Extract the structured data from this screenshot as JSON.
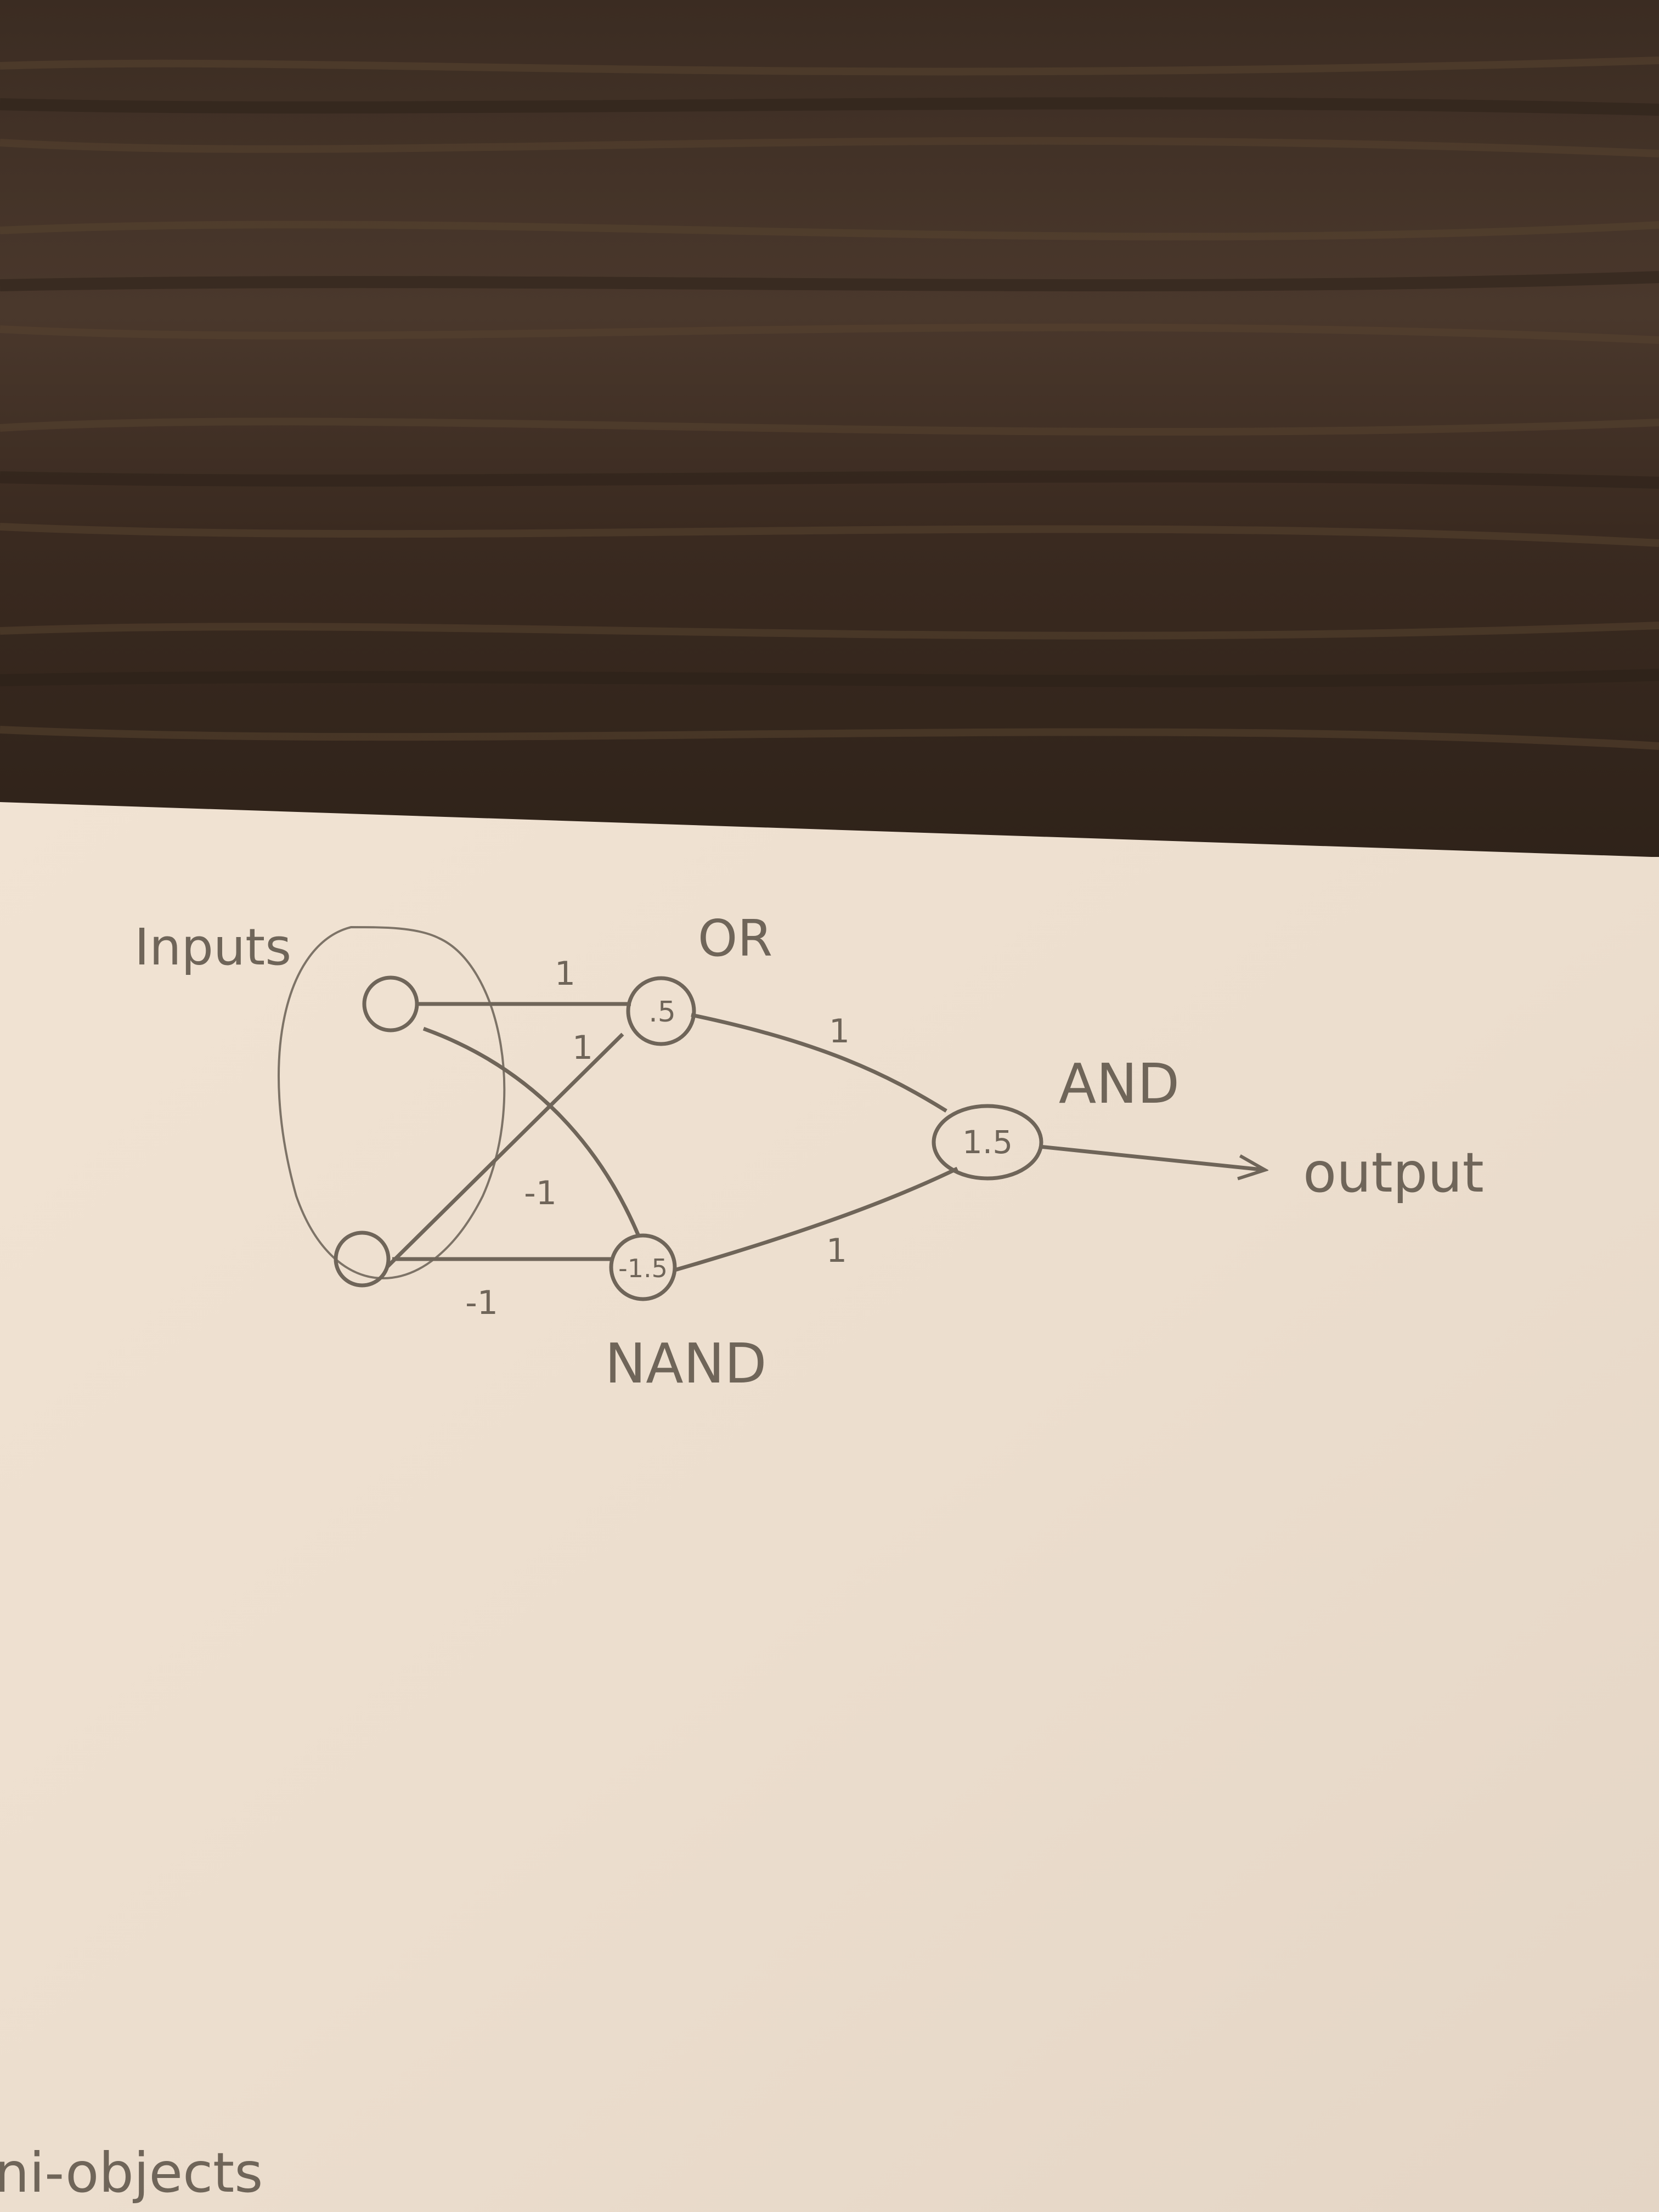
{
  "colors": {
    "table_wood": "#3a2c22",
    "paper": "#efe1d1",
    "pencil": "#6f6559"
  },
  "diagram": {
    "group_label": "Inputs",
    "nodes": {
      "input_top": {
        "text": ""
      },
      "input_bottom": {
        "text": ""
      },
      "or_gate": {
        "threshold": ".5",
        "label": "OR"
      },
      "nand_gate": {
        "threshold": "-1.5",
        "label": "NAND"
      },
      "and_gate": {
        "threshold": "1.5",
        "label": "AND"
      }
    },
    "weights": {
      "in1_to_or": "1",
      "in2_to_or": "1",
      "in1_to_nand": "-1",
      "in2_to_nand": "-1",
      "or_to_and": "1",
      "nand_to_and": "1"
    },
    "output_label": "output",
    "partial_text_bottom": "ni-objects"
  }
}
